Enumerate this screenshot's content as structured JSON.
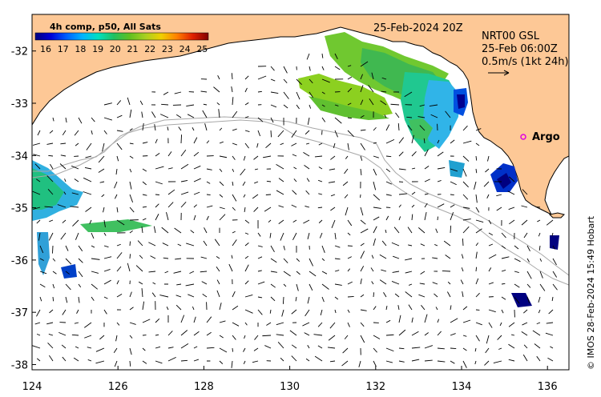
{
  "map": {
    "date_title": "25-Feb-2024 20Z",
    "product": {
      "line1": "NRT00 GSL",
      "line2": "25-Feb 06:00Z",
      "line3": "0.5m/s (1kt 24h)"
    },
    "colorbar": {
      "title": "4h comp, p50, All Sats",
      "ticks": [
        "16",
        "17",
        "18",
        "19",
        "20",
        "21",
        "22",
        "23",
        "24",
        "25"
      ],
      "colors": [
        "#000080",
        "#0000d8",
        "#0060ff",
        "#00b4ff",
        "#00e0c0",
        "#20c060",
        "#60c020",
        "#a8d020",
        "#f0d000",
        "#ff8000",
        "#e02000",
        "#800000"
      ]
    },
    "argo_label": "Argo",
    "credit": "© IMOS 28-Feb-2024 15:49 Hobart",
    "axes": {
      "x_ticks": [
        "124",
        "126",
        "128",
        "130",
        "132",
        "134",
        "136"
      ],
      "y_ticks": [
        "-32",
        "-33",
        "-34",
        "-35",
        "-36",
        "-37",
        "-38"
      ],
      "xlim": [
        124,
        136.5
      ],
      "ylim": [
        -38.1,
        -31.3
      ]
    },
    "colors": {
      "land": "#fdc896",
      "sea": "#ffffff",
      "bathymetry": "#a8a8a8",
      "argo": "#e000e0"
    }
  }
}
